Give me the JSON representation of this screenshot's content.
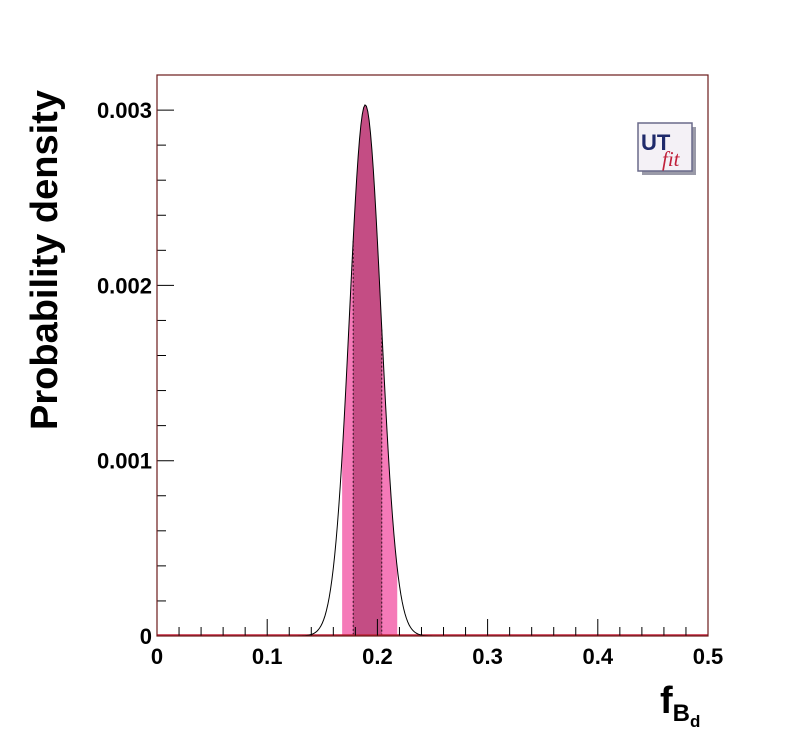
{
  "chart_data": {
    "type": "area",
    "xlabel_main": "f",
    "xlabel_sub": "B",
    "xlabel_subsub": "d",
    "ylabel": "Probability density",
    "xlim": [
      0,
      0.5
    ],
    "ylim": [
      0,
      0.0032
    ],
    "x_ticks": [
      "0",
      "0.1",
      "0.2",
      "0.3",
      "0.4",
      "0.5"
    ],
    "x_tick_values": [
      0,
      0.1,
      0.2,
      0.3,
      0.4,
      0.5
    ],
    "y_ticks": [
      "0",
      "0.001",
      "0.002",
      "0.003"
    ],
    "y_tick_values": [
      0,
      0.001,
      0.002,
      0.003
    ],
    "distribution": {
      "mean": 0.189,
      "sigma": 0.0143,
      "peak": 0.00303
    },
    "range_95": [
      0.168,
      0.218
    ],
    "range_68": [
      0.178,
      0.204
    ],
    "grid": false,
    "colors": {
      "band_95": "#f57ab8",
      "band_68": "#c44d84",
      "curve": "#000000",
      "frame": "#6b1a1a",
      "baseline": "#c0223a"
    }
  },
  "logo": {
    "ut": "UT",
    "fit": "fit"
  }
}
